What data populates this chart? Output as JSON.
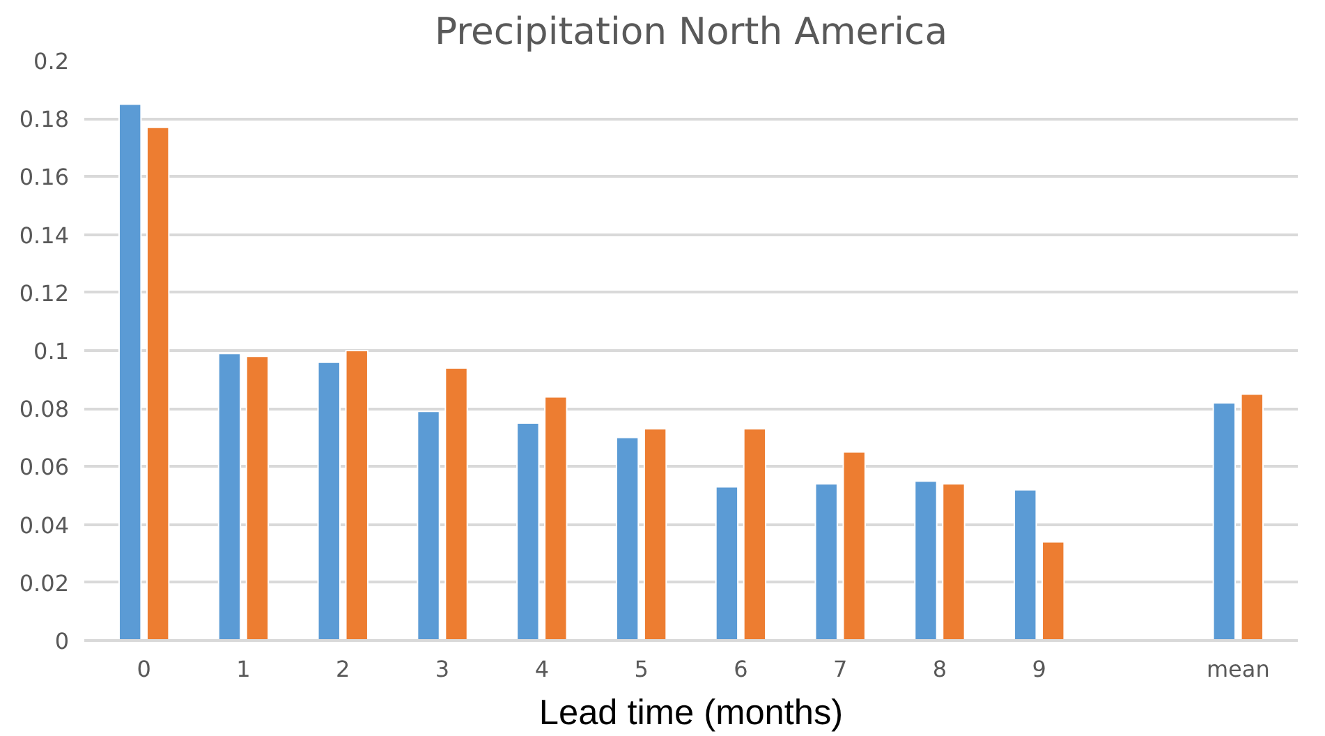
{
  "chart_data": {
    "type": "bar",
    "title": "Precipitation North America",
    "xlabel": "Lead time (months)",
    "categories": [
      "0",
      "1",
      "2",
      "3",
      "4",
      "5",
      "6",
      "7",
      "8",
      "9",
      null,
      "mean"
    ],
    "series": [
      {
        "color": "#5b9bd5",
        "values": [
          0.185,
          0.099,
          0.096,
          0.079,
          0.075,
          0.07,
          0.053,
          0.054,
          0.055,
          0.052,
          null,
          0.082
        ]
      },
      {
        "color": "#ed7d31",
        "values": [
          0.177,
          0.098,
          0.1,
          0.094,
          0.084,
          0.073,
          0.073,
          0.065,
          0.054,
          0.034,
          null,
          0.085
        ]
      }
    ],
    "ylim": [
      0,
      0.2
    ],
    "yticks": [
      0,
      0.02,
      0.04,
      0.06,
      0.08,
      0.1,
      0.12,
      0.14,
      0.16,
      0.18,
      0.2
    ],
    "grid": "y"
  }
}
